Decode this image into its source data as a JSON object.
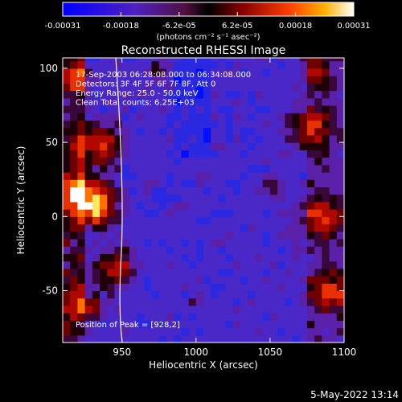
{
  "chart_data": {
    "type": "heatmap",
    "title": "Reconstructed RHESSI Image",
    "xlabel": "Heliocentric X (arcsec)",
    "ylabel": "Heliocentric Y (arcsec)",
    "xlim": [
      910,
      1100
    ],
    "ylim": [
      -85,
      107
    ],
    "x_ticks": [
      950,
      1000,
      1050,
      1100
    ],
    "y_ticks": [
      -50,
      0,
      50,
      100
    ],
    "colorbar": {
      "min": -0.00031,
      "max": 0.00031,
      "ticks": [
        "-0.00031",
        "-0.00018",
        "-6.2e-05",
        "6.2e-05",
        "0.00018",
        "0.00031"
      ],
      "unit_label": "(photons cm⁻² s⁻¹ asec⁻²)"
    },
    "annotations": [
      "17-Sep-2003 06:28:08.000 to 06:34:08.000",
      "Detectors: 3F 4F 5F 6F 7F 8F, Att 0",
      "Energy Range: 25.0 - 50.0 keV",
      "Clean    Total counts: 6.25E+03"
    ],
    "peak_label": "Position of Peak = [928,2]",
    "peak_position": [
      928,
      2
    ],
    "limb_line": true
  },
  "footer": {
    "date": "5-May-2022 13:14"
  }
}
